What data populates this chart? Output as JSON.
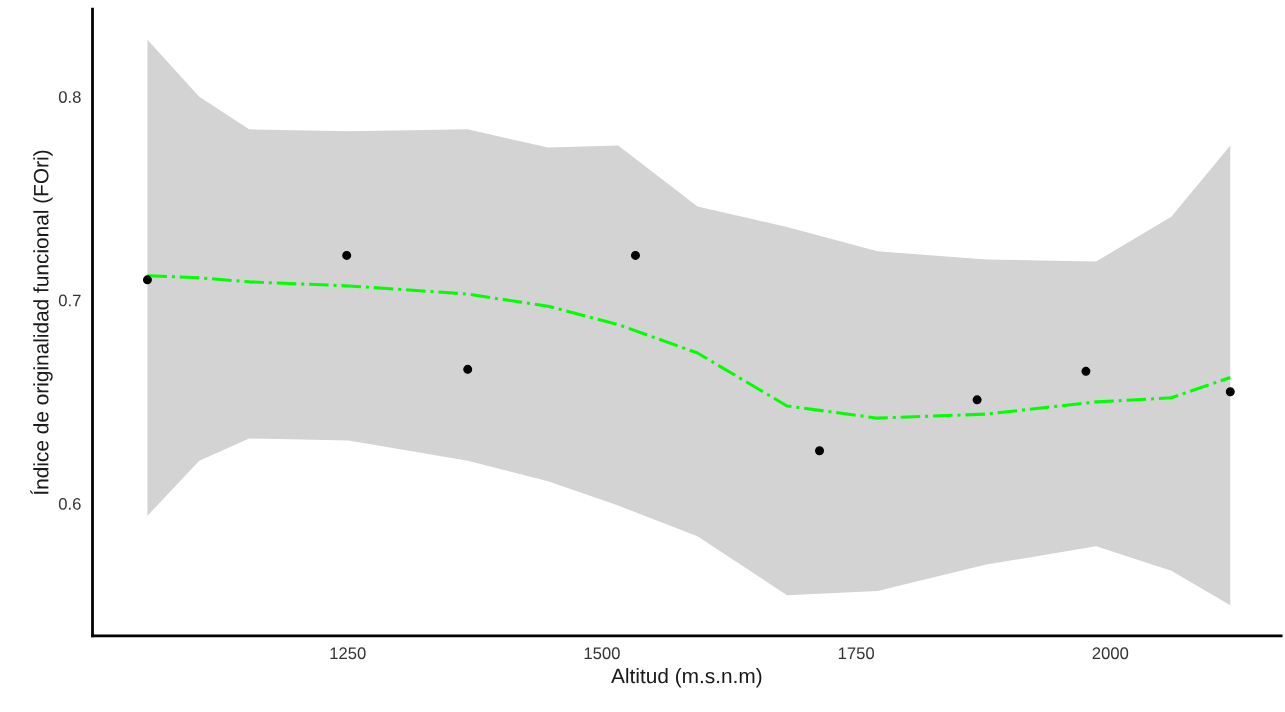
{
  "chart_data": {
    "type": "scatter",
    "xlabel": "Altitud (m.s.n.m)",
    "ylabel": "Índice de originalidad funcional (FOri)",
    "xlim": [
      999,
      2168
    ],
    "ylim": [
      0.535,
      0.843
    ],
    "xticks": [
      1250,
      1500,
      1750,
      2000
    ],
    "yticks": [
      0.6,
      0.7,
      0.8
    ],
    "grid": false,
    "series": [
      {
        "color": "#000000",
        "marker": "circle",
        "x": [
          1053,
          1249,
          1368,
          1533,
          1714,
          1869,
          1976,
          2118
        ],
        "values": [
          0.71,
          0.722,
          0.666,
          0.722,
          0.626,
          0.651,
          0.665,
          0.655
        ]
      },
      {
        "type": "line",
        "color": "#00ff00",
        "line_style": "dashdot",
        "marker": "none",
        "x": [
          1053,
          1104,
          1153,
          1251,
          1368,
          1447,
          1516,
          1594,
          1682,
          1771,
          1878,
          1986,
          2060,
          2118
        ],
        "values": [
          0.712,
          0.711,
          0.709,
          0.707,
          0.703,
          0.697,
          0.688,
          0.674,
          0.648,
          0.642,
          0.644,
          0.65,
          0.652,
          0.662
        ],
        "lower": [
          0.594,
          0.621,
          0.632,
          0.631,
          0.621,
          0.611,
          0.599,
          0.584,
          0.555,
          0.557,
          0.57,
          0.579,
          0.567,
          0.55
        ],
        "upper": [
          0.828,
          0.8,
          0.784,
          0.783,
          0.784,
          0.775,
          0.776,
          0.746,
          0.736,
          0.724,
          0.72,
          0.719,
          0.741,
          0.776
        ]
      }
    ]
  }
}
